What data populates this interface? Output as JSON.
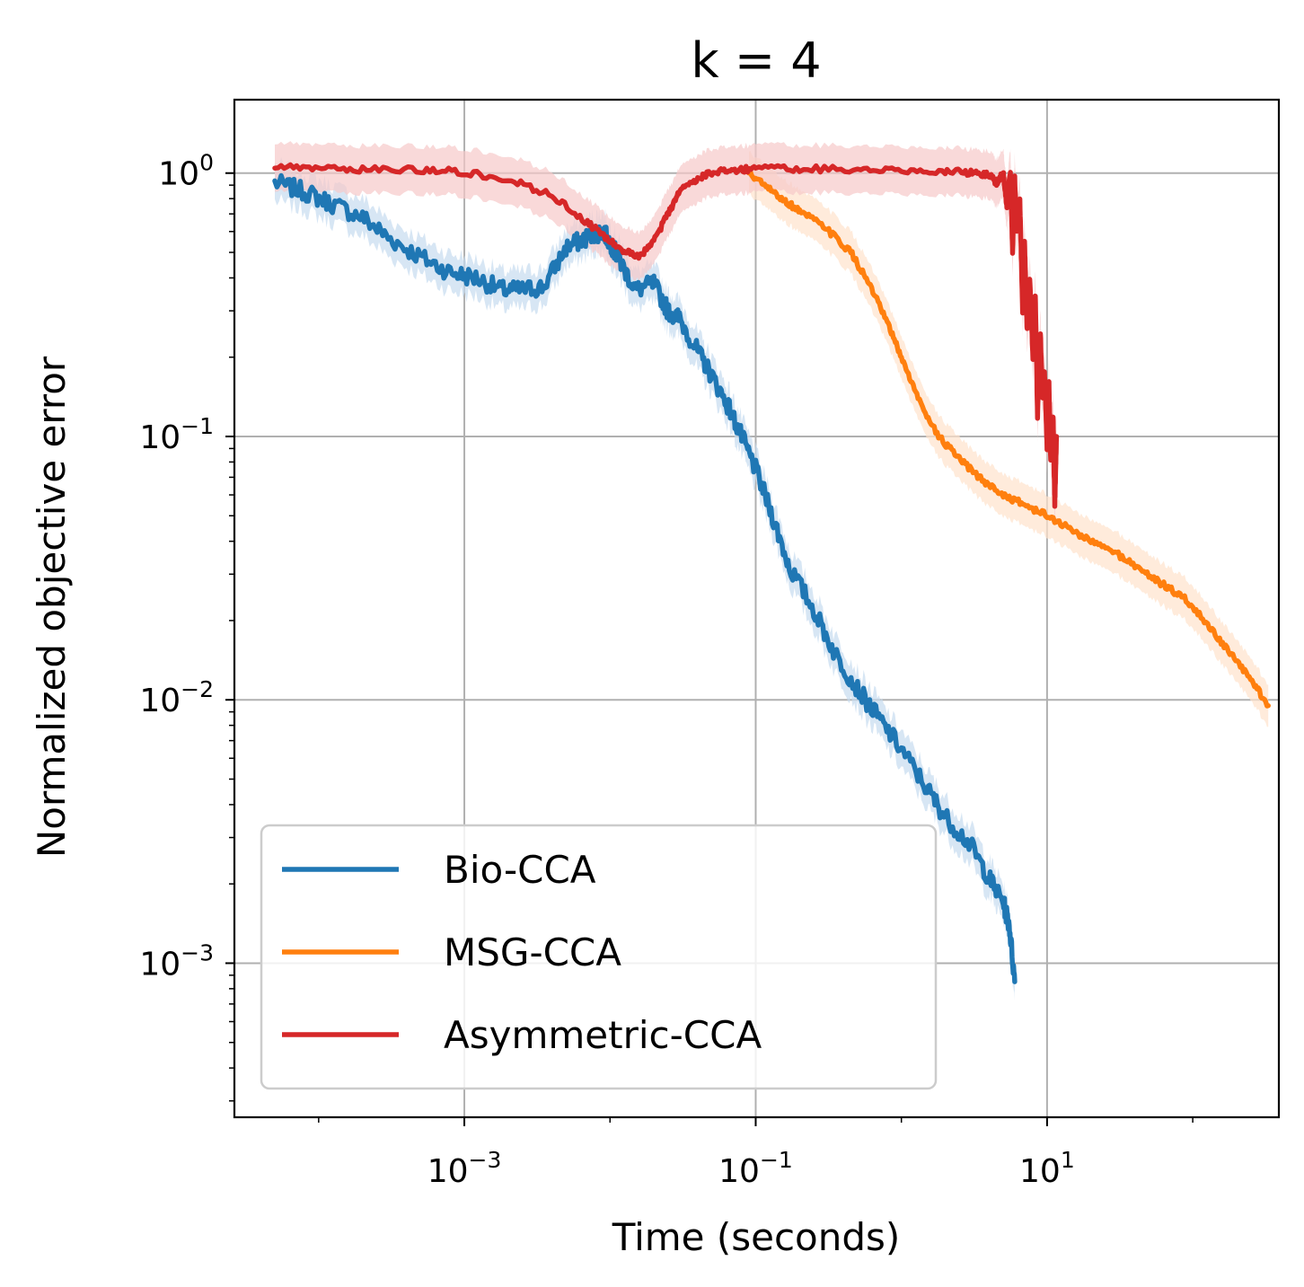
{
  "chart_data": {
    "type": "line",
    "title": "k = 4",
    "xlabel": "Time (seconds)",
    "ylabel": "Normalized objective error",
    "xscale": "log",
    "yscale": "log",
    "xlim": [
      2.64e-05,
      390
    ],
    "ylim": [
      0.00026,
      1.9
    ],
    "grid": true,
    "legend_position": "lower-left",
    "x_ticks": [
      {
        "value": 0.001,
        "base": "10",
        "exp": "−3"
      },
      {
        "value": 0.1,
        "base": "10",
        "exp": "−1"
      },
      {
        "value": 10,
        "base": "10",
        "exp": "1"
      }
    ],
    "y_ticks": [
      {
        "value": 1,
        "base": "10",
        "exp": "0"
      },
      {
        "value": 0.1,
        "base": "10",
        "exp": "−1"
      },
      {
        "value": 0.01,
        "base": "10",
        "exp": "−2"
      },
      {
        "value": 0.001,
        "base": "10",
        "exp": "−3"
      }
    ],
    "series": [
      {
        "name": "Bio-CCA",
        "color": "#1f77b4",
        "band_color": "#c6dbef",
        "noise": 0.035,
        "x": [
          5e-05,
          8e-05,
          0.00012,
          0.0002,
          0.0003,
          0.0005,
          0.0008,
          0.0012,
          0.0018,
          0.0025,
          0.0035,
          0.005,
          0.0065,
          0.008,
          0.009,
          0.0105,
          0.012,
          0.015,
          0.02,
          0.025,
          0.03,
          0.04,
          0.05,
          0.065,
          0.08,
          0.1,
          0.13,
          0.17,
          0.25,
          0.35,
          0.5,
          0.7,
          1.0,
          1.5,
          2.0,
          3.0,
          4.0,
          5.0,
          5.5,
          6.0
        ],
        "y": [
          0.92,
          0.85,
          0.77,
          0.68,
          0.57,
          0.48,
          0.42,
          0.4,
          0.36,
          0.36,
          0.37,
          0.52,
          0.56,
          0.59,
          0.6,
          0.52,
          0.45,
          0.36,
          0.38,
          0.3,
          0.28,
          0.21,
          0.17,
          0.13,
          0.1,
          0.075,
          0.05,
          0.032,
          0.022,
          0.015,
          0.011,
          0.0085,
          0.0065,
          0.0046,
          0.0036,
          0.0028,
          0.0021,
          0.0017,
          0.0014,
          0.00085
        ]
      },
      {
        "name": "MSG-CCA",
        "color": "#ff7f0e",
        "band_color": "#ffe3cc",
        "noise": 0.012,
        "x": [
          0.09,
          0.12,
          0.16,
          0.2,
          0.3,
          0.45,
          0.6,
          0.8,
          1.0,
          1.3,
          1.8,
          2.5,
          3.5,
          5.0,
          7.0,
          10.0,
          14.0,
          20.0,
          30.0,
          45.0,
          65.0,
          90.0,
          130.0,
          180.0,
          250.0,
          330.0
        ],
        "y": [
          1.0,
          0.88,
          0.78,
          0.72,
          0.62,
          0.5,
          0.38,
          0.27,
          0.2,
          0.14,
          0.1,
          0.082,
          0.069,
          0.06,
          0.055,
          0.05,
          0.045,
          0.04,
          0.036,
          0.031,
          0.027,
          0.024,
          0.019,
          0.015,
          0.012,
          0.0095
        ]
      },
      {
        "name": "Asymmetric-CCA",
        "color": "#d62728",
        "band_color": "#f7c9c9",
        "noise": 0.012,
        "x": [
          5e-05,
          0.0001,
          0.0002,
          0.0005,
          0.001,
          0.002,
          0.004,
          0.007,
          0.01,
          0.013,
          0.016,
          0.02,
          0.025,
          0.03,
          0.04,
          0.05,
          0.07,
          0.1,
          0.2,
          0.5,
          1.0,
          2.0,
          3.0,
          4.0,
          4.5,
          5.0,
          5.3,
          5.6,
          5.8,
          6.0,
          6.2,
          6.5,
          6.8,
          7.0,
          7.3,
          7.6,
          8.0,
          8.3,
          8.6,
          9.0,
          9.3,
          9.6,
          10.0,
          10.3,
          10.6,
          11.0,
          11.3,
          11.6
        ],
        "y": [
          1.05,
          1.04,
          1.03,
          1.03,
          1.01,
          0.95,
          0.82,
          0.65,
          0.55,
          0.5,
          0.48,
          0.55,
          0.7,
          0.85,
          0.96,
          1.0,
          1.03,
          1.04,
          1.04,
          1.03,
          1.03,
          1.02,
          1.0,
          0.98,
          0.92,
          1.0,
          0.75,
          1.02,
          0.5,
          0.95,
          0.6,
          0.8,
          0.3,
          0.55,
          0.25,
          0.4,
          0.2,
          0.35,
          0.12,
          0.25,
          0.14,
          0.18,
          0.09,
          0.16,
          0.08,
          0.12,
          0.055,
          0.1
        ]
      }
    ]
  }
}
